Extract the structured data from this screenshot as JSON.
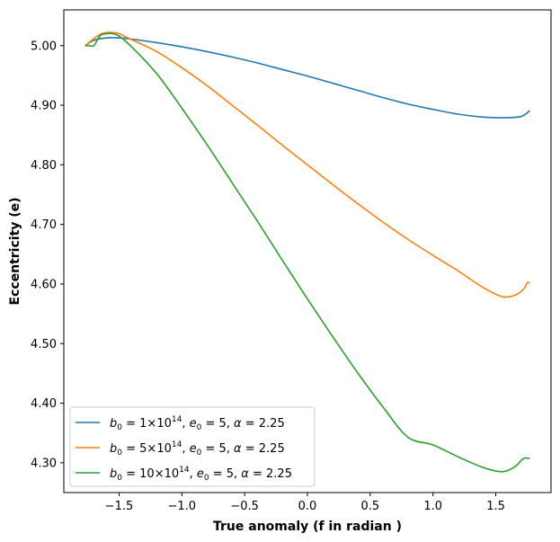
{
  "chart_data": {
    "type": "line",
    "title": "",
    "xlabel": "True anomaly (f in radian )",
    "ylabel": "Eccentricity (e)",
    "xlim": [
      -1.94,
      1.94
    ],
    "ylim": [
      4.25,
      5.06
    ],
    "xticks": [
      -1.5,
      -1.0,
      -0.5,
      0.0,
      0.5,
      1.0,
      1.5
    ],
    "xtick_labels": [
      "−1.5",
      "−1.0",
      "−0.5",
      "0.0",
      "0.5",
      "1.0",
      "1.5"
    ],
    "yticks": [
      4.3,
      4.4,
      4.5,
      4.6,
      4.7,
      4.8,
      4.9,
      5.0
    ],
    "ytick_labels": [
      "4.30",
      "4.40",
      "4.50",
      "4.60",
      "4.70",
      "4.80",
      "4.90",
      "5.00"
    ],
    "grid": false,
    "legend_position": "lower-left",
    "series": [
      {
        "name": "b0 = 1×10^14, e0 = 5, α = 2.25",
        "label_parts": {
          "b0": "1×10",
          "exp": "14",
          "e0": "5",
          "alpha": "2.25"
        },
        "color": "#1f77b4",
        "x": [
          -1.77,
          -1.7,
          -1.6,
          -1.5,
          -1.4,
          -1.2,
          -1.0,
          -0.8,
          -0.6,
          -0.4,
          -0.2,
          0.0,
          0.2,
          0.4,
          0.6,
          0.8,
          1.0,
          1.2,
          1.4,
          1.55,
          1.7,
          1.77
        ],
        "y": [
          5.0,
          5.009,
          5.013,
          5.013,
          5.011,
          5.005,
          4.998,
          4.99,
          4.981,
          4.971,
          4.96,
          4.949,
          4.937,
          4.925,
          4.913,
          4.902,
          4.893,
          4.885,
          4.88,
          4.879,
          4.881,
          4.891
        ]
      },
      {
        "name": "b0 = 5×10^14, e0 = 5, α = 2.25",
        "label_parts": {
          "b0": "5×10",
          "exp": "14",
          "e0": "5",
          "alpha": "2.25"
        },
        "color": "#ff7f0e",
        "x": [
          -1.77,
          -1.7,
          -1.65,
          -1.6,
          -1.55,
          -1.5,
          -1.4,
          -1.2,
          -1.0,
          -0.8,
          -0.6,
          -0.4,
          -0.2,
          0.0,
          0.2,
          0.4,
          0.6,
          0.8,
          1.0,
          1.2,
          1.4,
          1.55,
          1.65,
          1.72,
          1.75,
          1.77
        ],
        "y": [
          5.0,
          5.012,
          5.019,
          5.022,
          5.022,
          5.02,
          5.01,
          4.99,
          4.963,
          4.933,
          4.9,
          4.867,
          4.833,
          4.8,
          4.767,
          4.735,
          4.704,
          4.675,
          4.648,
          4.622,
          4.594,
          4.579,
          4.581,
          4.591,
          4.602,
          4.602
        ]
      },
      {
        "name": "b0 = 10×10^14, e0 = 5, α = 2.25",
        "label_parts": {
          "b0": "10×10",
          "exp": "14",
          "e0": "5",
          "alpha": "2.25"
        },
        "color": "#2ca02c",
        "x": [
          -1.77,
          -1.73,
          -1.7,
          -1.65,
          -1.6,
          -1.55,
          -1.5,
          -1.4,
          -1.2,
          -1.0,
          -0.8,
          -0.6,
          -0.4,
          -0.2,
          0.0,
          0.2,
          0.4,
          0.6,
          0.8,
          1.0,
          1.2,
          1.4,
          1.55,
          1.65,
          1.72,
          1.77
        ],
        "y": [
          5.0,
          5.0,
          5.0,
          5.017,
          5.02,
          5.02,
          5.016,
          4.998,
          4.953,
          4.895,
          4.834,
          4.77,
          4.706,
          4.64,
          4.575,
          4.512,
          4.451,
          4.394,
          4.343,
          4.33,
          4.31,
          4.292,
          4.285,
          4.293,
          4.307,
          4.307
        ]
      }
    ]
  }
}
